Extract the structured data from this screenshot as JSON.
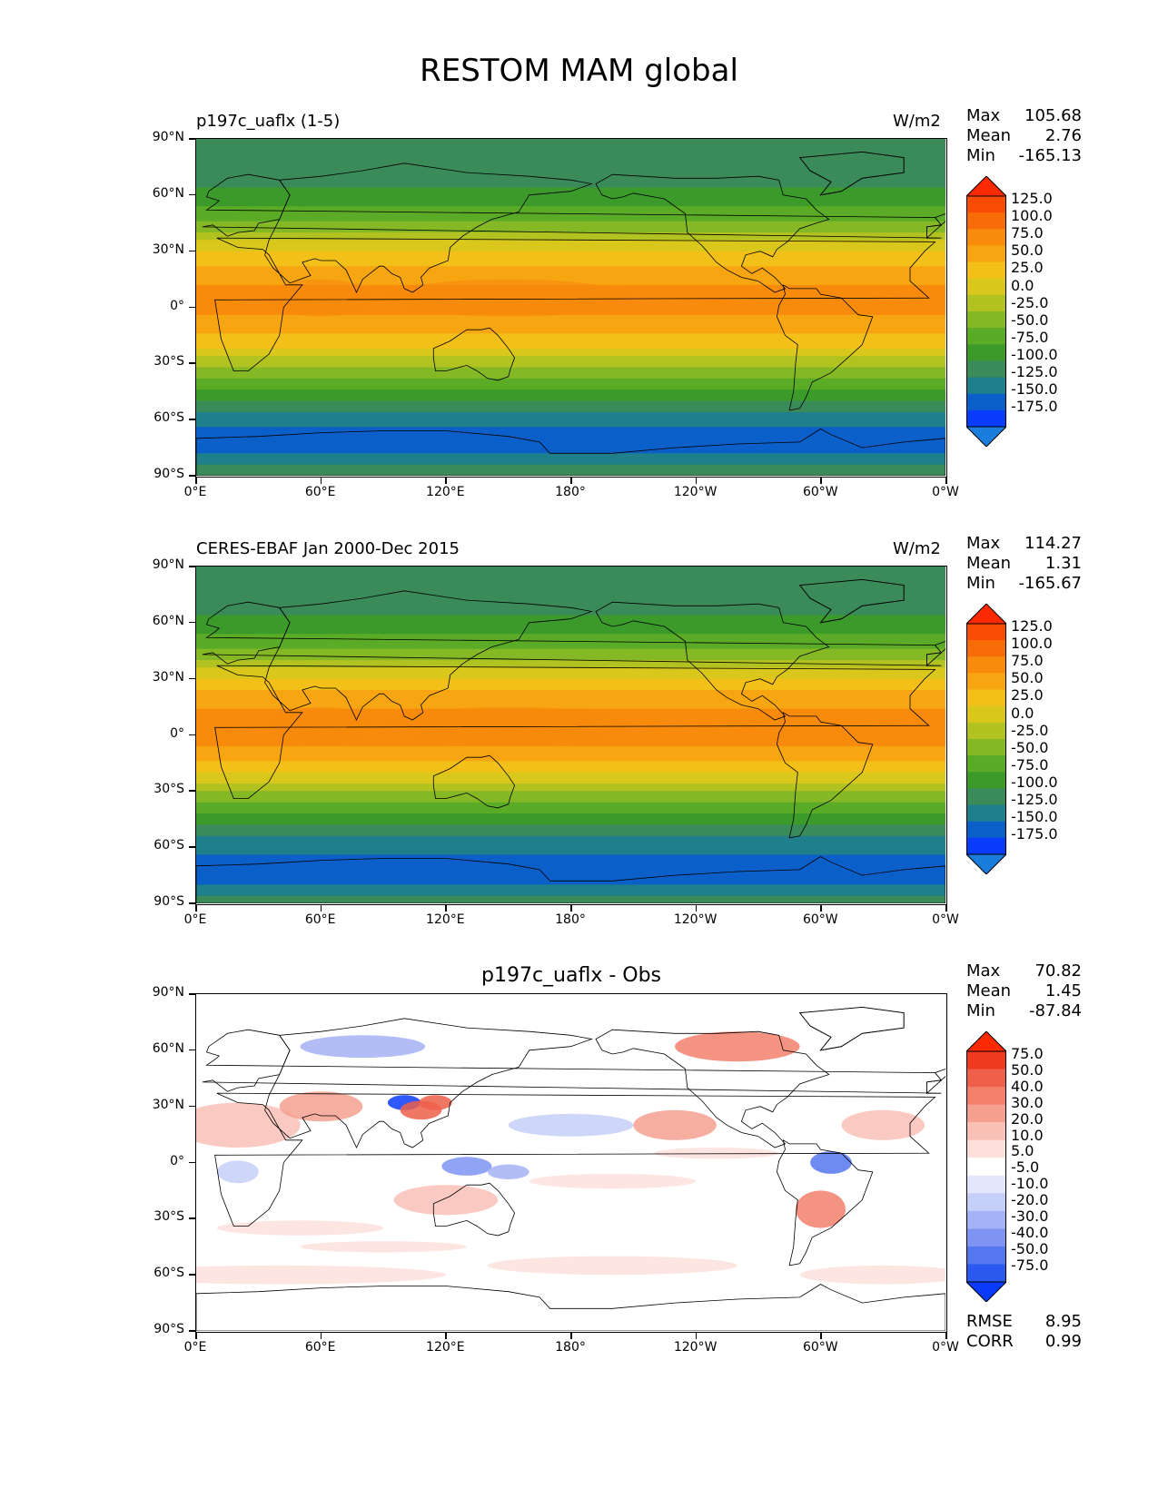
{
  "figure_title": "RESTOM MAM global",
  "axes": {
    "lat_ticks": [
      "90°N",
      "60°N",
      "30°N",
      "0°",
      "30°S",
      "60°S",
      "90°S"
    ],
    "lon_ticks": [
      "0°E",
      "60°E",
      "120°E",
      "180°",
      "120°W",
      "60°W",
      "0°W"
    ]
  },
  "colors": {
    "field": [
      "#1a7dde",
      "#0a3cfd",
      "#0b5fc9",
      "#1f7f8a",
      "#3a8a5a",
      "#3b9a2a",
      "#5aab26",
      "#85b825",
      "#b2c220",
      "#d9c71c",
      "#f2c018",
      "#f7a612",
      "#f88a0c",
      "#f86c08",
      "#fa4c05",
      "#fc2a02"
    ],
    "diff": [
      "#0a3cfd",
      "#2c5af0",
      "#5577f0",
      "#7e93f2",
      "#a5b2f5",
      "#c6cff8",
      "#e2e7fb",
      "#ffffff",
      "#fde0dc",
      "#f9c0b6",
      "#f5a090",
      "#f2806c",
      "#ef5f4a",
      "#f03a20",
      "#fc2a02"
    ]
  },
  "panels": [
    {
      "title_left": "p197c_uaflx (1-5)",
      "units": "W/m2",
      "stats": [
        {
          "label": "Max",
          "value": "105.68"
        },
        {
          "label": "Mean",
          "value": "2.76"
        },
        {
          "label": "Min",
          "value": "-165.13"
        }
      ],
      "colorbar_labels": [
        "125.0",
        "100.0",
        "75.0",
        "50.0",
        "25.0",
        "0.0",
        "-25.0",
        "-50.0",
        "-75.0",
        "-100.0",
        "-125.0",
        "-150.0",
        "-175.0"
      ]
    },
    {
      "title_left": "CERES-EBAF Jan 2000-Dec 2015",
      "units": "W/m2",
      "stats": [
        {
          "label": "Max",
          "value": "114.27"
        },
        {
          "label": "Mean",
          "value": "1.31"
        },
        {
          "label": "Min",
          "value": "-165.67"
        }
      ],
      "colorbar_labels": [
        "125.0",
        "100.0",
        "75.0",
        "50.0",
        "25.0",
        "0.0",
        "-25.0",
        "-50.0",
        "-75.0",
        "-100.0",
        "-125.0",
        "-150.0",
        "-175.0"
      ]
    },
    {
      "title_center": "p197c_uaflx - Obs",
      "stats": [
        {
          "label": "Max",
          "value": "70.82"
        },
        {
          "label": "Mean",
          "value": "1.45"
        },
        {
          "label": "Min",
          "value": "-87.84"
        }
      ],
      "colorbar_labels": [
        "75.0",
        "50.0",
        "40.0",
        "30.0",
        "20.0",
        "10.0",
        "5.0",
        "-5.0",
        "-10.0",
        "-20.0",
        "-30.0",
        "-40.0",
        "-50.0",
        "-75.0"
      ],
      "extra_stats": [
        {
          "label": "RMSE",
          "value": "8.95"
        },
        {
          "label": "CORR",
          "value": "0.99"
        }
      ]
    }
  ],
  "chart_data": [
    {
      "type": "heatmap",
      "title": "p197c_uaflx (1-5)",
      "units": "W/m2",
      "xlim": [
        0,
        360
      ],
      "ylim": [
        -90,
        90
      ],
      "stats": {
        "max": 105.68,
        "mean": 2.76,
        "min": -165.13
      },
      "levels": [
        -175,
        -150,
        -125,
        -100,
        -75,
        -50,
        -25,
        0,
        25,
        50,
        75,
        100,
        125
      ],
      "zonal_profile": {
        "lat": [
          -90,
          -75,
          -65,
          -55,
          -45,
          -35,
          -25,
          -15,
          -5,
          5,
          15,
          25,
          35,
          45,
          55,
          65,
          75,
          90
        ],
        "value": [
          -100,
          -165,
          -150,
          -120,
          -80,
          -40,
          10,
          50,
          75,
          85,
          70,
          45,
          5,
          -45,
          -80,
          -100,
          -110,
          -100
        ]
      }
    },
    {
      "type": "heatmap",
      "title": "CERES-EBAF Jan 2000-Dec 2015",
      "units": "W/m2",
      "xlim": [
        0,
        360
      ],
      "ylim": [
        -90,
        90
      ],
      "stats": {
        "max": 114.27,
        "mean": 1.31,
        "min": -165.67
      },
      "levels": [
        -175,
        -150,
        -125,
        -100,
        -75,
        -50,
        -25,
        0,
        25,
        50,
        75,
        100,
        125
      ],
      "zonal_profile": {
        "lat": [
          -90,
          -75,
          -65,
          -55,
          -45,
          -35,
          -25,
          -15,
          -5,
          5,
          15,
          25,
          35,
          45,
          55,
          65,
          75,
          90
        ],
        "value": [
          -110,
          -165,
          -155,
          -125,
          -85,
          -45,
          5,
          45,
          78,
          90,
          72,
          45,
          5,
          -45,
          -80,
          -100,
          -115,
          -105
        ]
      }
    },
    {
      "type": "heatmap",
      "title": "p197c_uaflx - Obs",
      "units": "W/m2",
      "xlim": [
        0,
        360
      ],
      "ylim": [
        -90,
        90
      ],
      "stats": {
        "max": 70.82,
        "mean": 1.45,
        "min": -87.84,
        "rmse": 8.95,
        "corr": 0.99
      },
      "levels": [
        -75,
        -50,
        -40,
        -30,
        -20,
        -10,
        -5,
        5,
        10,
        20,
        30,
        40,
        50,
        75
      ]
    }
  ]
}
